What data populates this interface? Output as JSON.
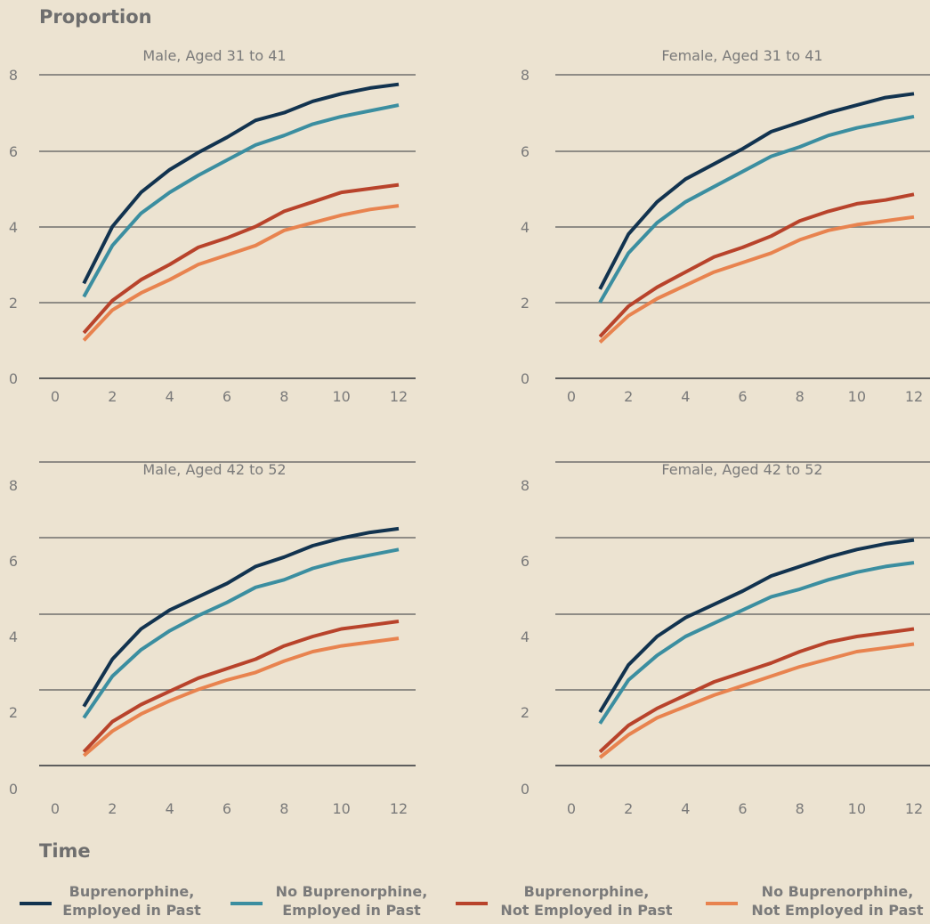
{
  "chart_data": {
    "type": "line",
    "ylabel": "Proportion",
    "xlabel": "Time",
    "x": [
      1,
      2,
      3,
      4,
      5,
      6,
      7,
      8,
      9,
      10,
      11,
      12
    ],
    "x_ticks": [
      "0",
      "2",
      "4",
      "6",
      "8",
      "10",
      "12"
    ],
    "y_ticks": [
      "0",
      "2",
      "4",
      "6",
      "8"
    ],
    "xlim": [
      0,
      12
    ],
    "ylim": [
      0,
      8
    ],
    "grid": true,
    "legend_position": "bottom",
    "series_styles": [
      {
        "name": "Buprenorphine, Employed in Past",
        "lines": [
          "Buprenorphine,",
          "Employed in Past"
        ],
        "color": "#12334f"
      },
      {
        "name": "No Buprenorphine, Employed in Past",
        "lines": [
          "No Buprenorphine,",
          "Employed in Past"
        ],
        "color": "#3b8ea0"
      },
      {
        "name": "Buprenorphine, Not Employed in Past",
        "lines": [
          "Buprenorphine,",
          "Not Employed in Past"
        ],
        "color": "#b8432b"
      },
      {
        "name": "No Buprenorphine, Not Employed in Past",
        "lines": [
          "No Buprenorphine,",
          "Not Employed in Past"
        ],
        "color": "#e8834f"
      }
    ],
    "panels": [
      {
        "title": "Male, Aged 31 to 41",
        "series": [
          {
            "name": "Buprenorphine, Employed in Past",
            "values": [
              2.5,
              4.0,
              4.9,
              5.5,
              5.95,
              6.35,
              6.8,
              7.0,
              7.3,
              7.5,
              7.65,
              7.75
            ]
          },
          {
            "name": "No Buprenorphine, Employed in Past",
            "values": [
              2.15,
              3.5,
              4.35,
              4.9,
              5.35,
              5.75,
              6.15,
              6.4,
              6.7,
              6.9,
              7.05,
              7.2
            ]
          },
          {
            "name": "Buprenorphine, Not Employed in Past",
            "values": [
              1.2,
              2.05,
              2.6,
              3.0,
              3.45,
              3.7,
              4.0,
              4.4,
              4.65,
              4.9,
              5.0,
              5.1
            ]
          },
          {
            "name": "No Buprenorphine, Not Employed in Past",
            "values": [
              1.0,
              1.8,
              2.25,
              2.6,
              3.0,
              3.25,
              3.5,
              3.9,
              4.1,
              4.3,
              4.45,
              4.55
            ]
          }
        ]
      },
      {
        "title": "Female, Aged 31 to 41",
        "series": [
          {
            "name": "Buprenorphine, Employed in Past",
            "values": [
              2.35,
              3.8,
              4.65,
              5.25,
              5.65,
              6.05,
              6.5,
              6.75,
              7.0,
              7.2,
              7.4,
              7.5
            ]
          },
          {
            "name": "No Buprenorphine, Employed in Past",
            "values": [
              2.0,
              3.3,
              4.1,
              4.65,
              5.05,
              5.45,
              5.85,
              6.1,
              6.4,
              6.6,
              6.75,
              6.9
            ]
          },
          {
            "name": "Buprenorphine, Not Employed in Past",
            "values": [
              1.1,
              1.9,
              2.4,
              2.8,
              3.2,
              3.45,
              3.75,
              4.15,
              4.4,
              4.6,
              4.7,
              4.85
            ]
          },
          {
            "name": "No Buprenorphine, Not Employed in Past",
            "values": [
              0.95,
              1.65,
              2.1,
              2.45,
              2.8,
              3.05,
              3.3,
              3.65,
              3.9,
              4.05,
              4.15,
              4.25
            ]
          }
        ]
      },
      {
        "title": "Male, Aged 42 to 52",
        "series": [
          {
            "name": "Buprenorphine, Employed in Past",
            "values": [
              2.15,
              3.4,
              4.2,
              4.7,
              5.05,
              5.4,
              5.85,
              6.1,
              6.4,
              6.6,
              6.75,
              6.85
            ]
          },
          {
            "name": "No Buprenorphine, Employed in Past",
            "values": [
              1.85,
              2.95,
              3.65,
              4.15,
              4.55,
              4.9,
              5.3,
              5.5,
              5.8,
              6.0,
              6.15,
              6.3
            ]
          },
          {
            "name": "Buprenorphine, Not Employed in Past",
            "values": [
              0.95,
              1.75,
              2.2,
              2.55,
              2.9,
              3.15,
              3.4,
              3.75,
              4.0,
              4.2,
              4.3,
              4.4
            ]
          },
          {
            "name": "No Buprenorphine, Not Employed in Past",
            "values": [
              0.85,
              1.5,
              1.95,
              2.3,
              2.6,
              2.85,
              3.05,
              3.35,
              3.6,
              3.75,
              3.85,
              3.95
            ]
          }
        ]
      },
      {
        "title": "Female, Aged 42 to 52",
        "series": [
          {
            "name": "Buprenorphine, Employed in Past",
            "values": [
              2.0,
              3.25,
              4.0,
              4.5,
              4.85,
              5.2,
              5.6,
              5.85,
              6.1,
              6.3,
              6.45,
              6.55
            ]
          },
          {
            "name": "No Buprenorphine, Employed in Past",
            "values": [
              1.7,
              2.85,
              3.5,
              4.0,
              4.35,
              4.7,
              5.05,
              5.25,
              5.5,
              5.7,
              5.85,
              5.95
            ]
          },
          {
            "name": "Buprenorphine, Not Employed in Past",
            "values": [
              0.95,
              1.65,
              2.1,
              2.45,
              2.8,
              3.05,
              3.3,
              3.6,
              3.85,
              4.0,
              4.1,
              4.2
            ]
          },
          {
            "name": "No Buprenorphine, Not Employed in Past",
            "values": [
              0.8,
              1.4,
              1.85,
              2.15,
              2.45,
              2.7,
              2.95,
              3.2,
              3.4,
              3.6,
              3.7,
              3.8
            ]
          }
        ]
      }
    ]
  }
}
